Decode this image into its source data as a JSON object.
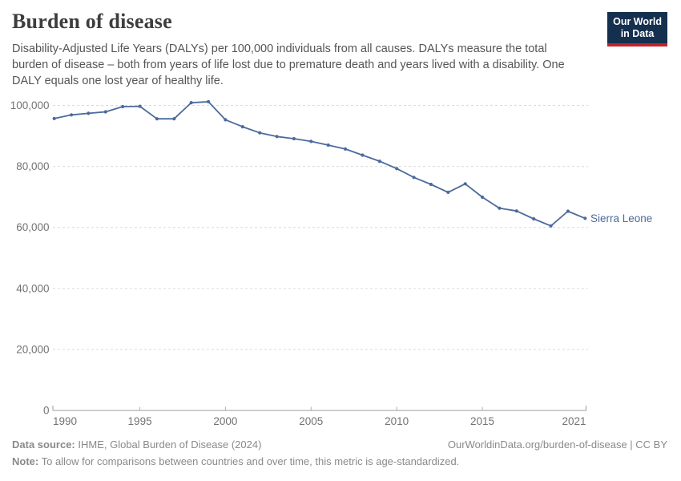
{
  "header": {
    "title": "Burden of disease",
    "subtitle_lines": [
      "Disability-Adjusted Life Years (DALYs) per 100,000 individuals from all causes. DALYs measure the total",
      "burden of disease – both from years of life lost due to premature death and years lived with a disability. One",
      "DALY equals one lost year of healthy life."
    ],
    "logo": {
      "line1": "Our World",
      "line2": "in Data"
    }
  },
  "chart_data": {
    "type": "line",
    "title": "Burden of disease",
    "xlabel": "",
    "ylabel": "",
    "x": [
      1990,
      1991,
      1992,
      1993,
      1994,
      1995,
      1996,
      1997,
      1998,
      1999,
      2000,
      2001,
      2002,
      2003,
      2004,
      2005,
      2006,
      2007,
      2008,
      2009,
      2010,
      2011,
      2012,
      2013,
      2014,
      2015,
      2016,
      2017,
      2018,
      2019,
      2020,
      2021
    ],
    "series": [
      {
        "name": "Sierra Leone",
        "color": "#4C6A9C",
        "values": [
          95700,
          96900,
          97400,
          97900,
          99600,
          99700,
          95600,
          95600,
          100900,
          101200,
          95300,
          93000,
          91000,
          89800,
          89100,
          88200,
          87000,
          85700,
          83700,
          81700,
          79300,
          76400,
          74100,
          71500,
          74300,
          69900,
          66300,
          65400,
          62800,
          60500,
          65300,
          63000
        ]
      }
    ],
    "x_ticks": [
      1990,
      1995,
      2000,
      2005,
      2010,
      2015,
      2021
    ],
    "x_tick_labels": [
      "1990",
      "1995",
      "2000",
      "2005",
      "2010",
      "2015",
      "2021"
    ],
    "y_ticks": [
      0,
      20000,
      40000,
      60000,
      80000,
      100000
    ],
    "y_tick_labels": [
      "0",
      "20,000",
      "40,000",
      "60,000",
      "80,000",
      "100,000"
    ],
    "ylim": [
      0,
      105000
    ],
    "grid": "horizontal-dashed",
    "legend_position": "end-of-line",
    "end_label": "Sierra Leone"
  },
  "footer": {
    "data_source_label": "Data source:",
    "data_source_text": " IHME, Global Burden of Disease (2024)",
    "url_text": "OurWorldinData.org/burden-of-disease | CC BY",
    "note_label": "Note:",
    "note_text": " To allow for comparisons between countries and over time, this metric is age-standardized."
  },
  "colors": {
    "line": "#4C6A9C",
    "grid": "#DBDBDB",
    "axis": "#9C9C9C",
    "tick": "#B0B0B0",
    "tick_label": "#737373",
    "title": "#3D3D3D",
    "subtitle": "#555555",
    "footer": "#8A8A8A"
  }
}
